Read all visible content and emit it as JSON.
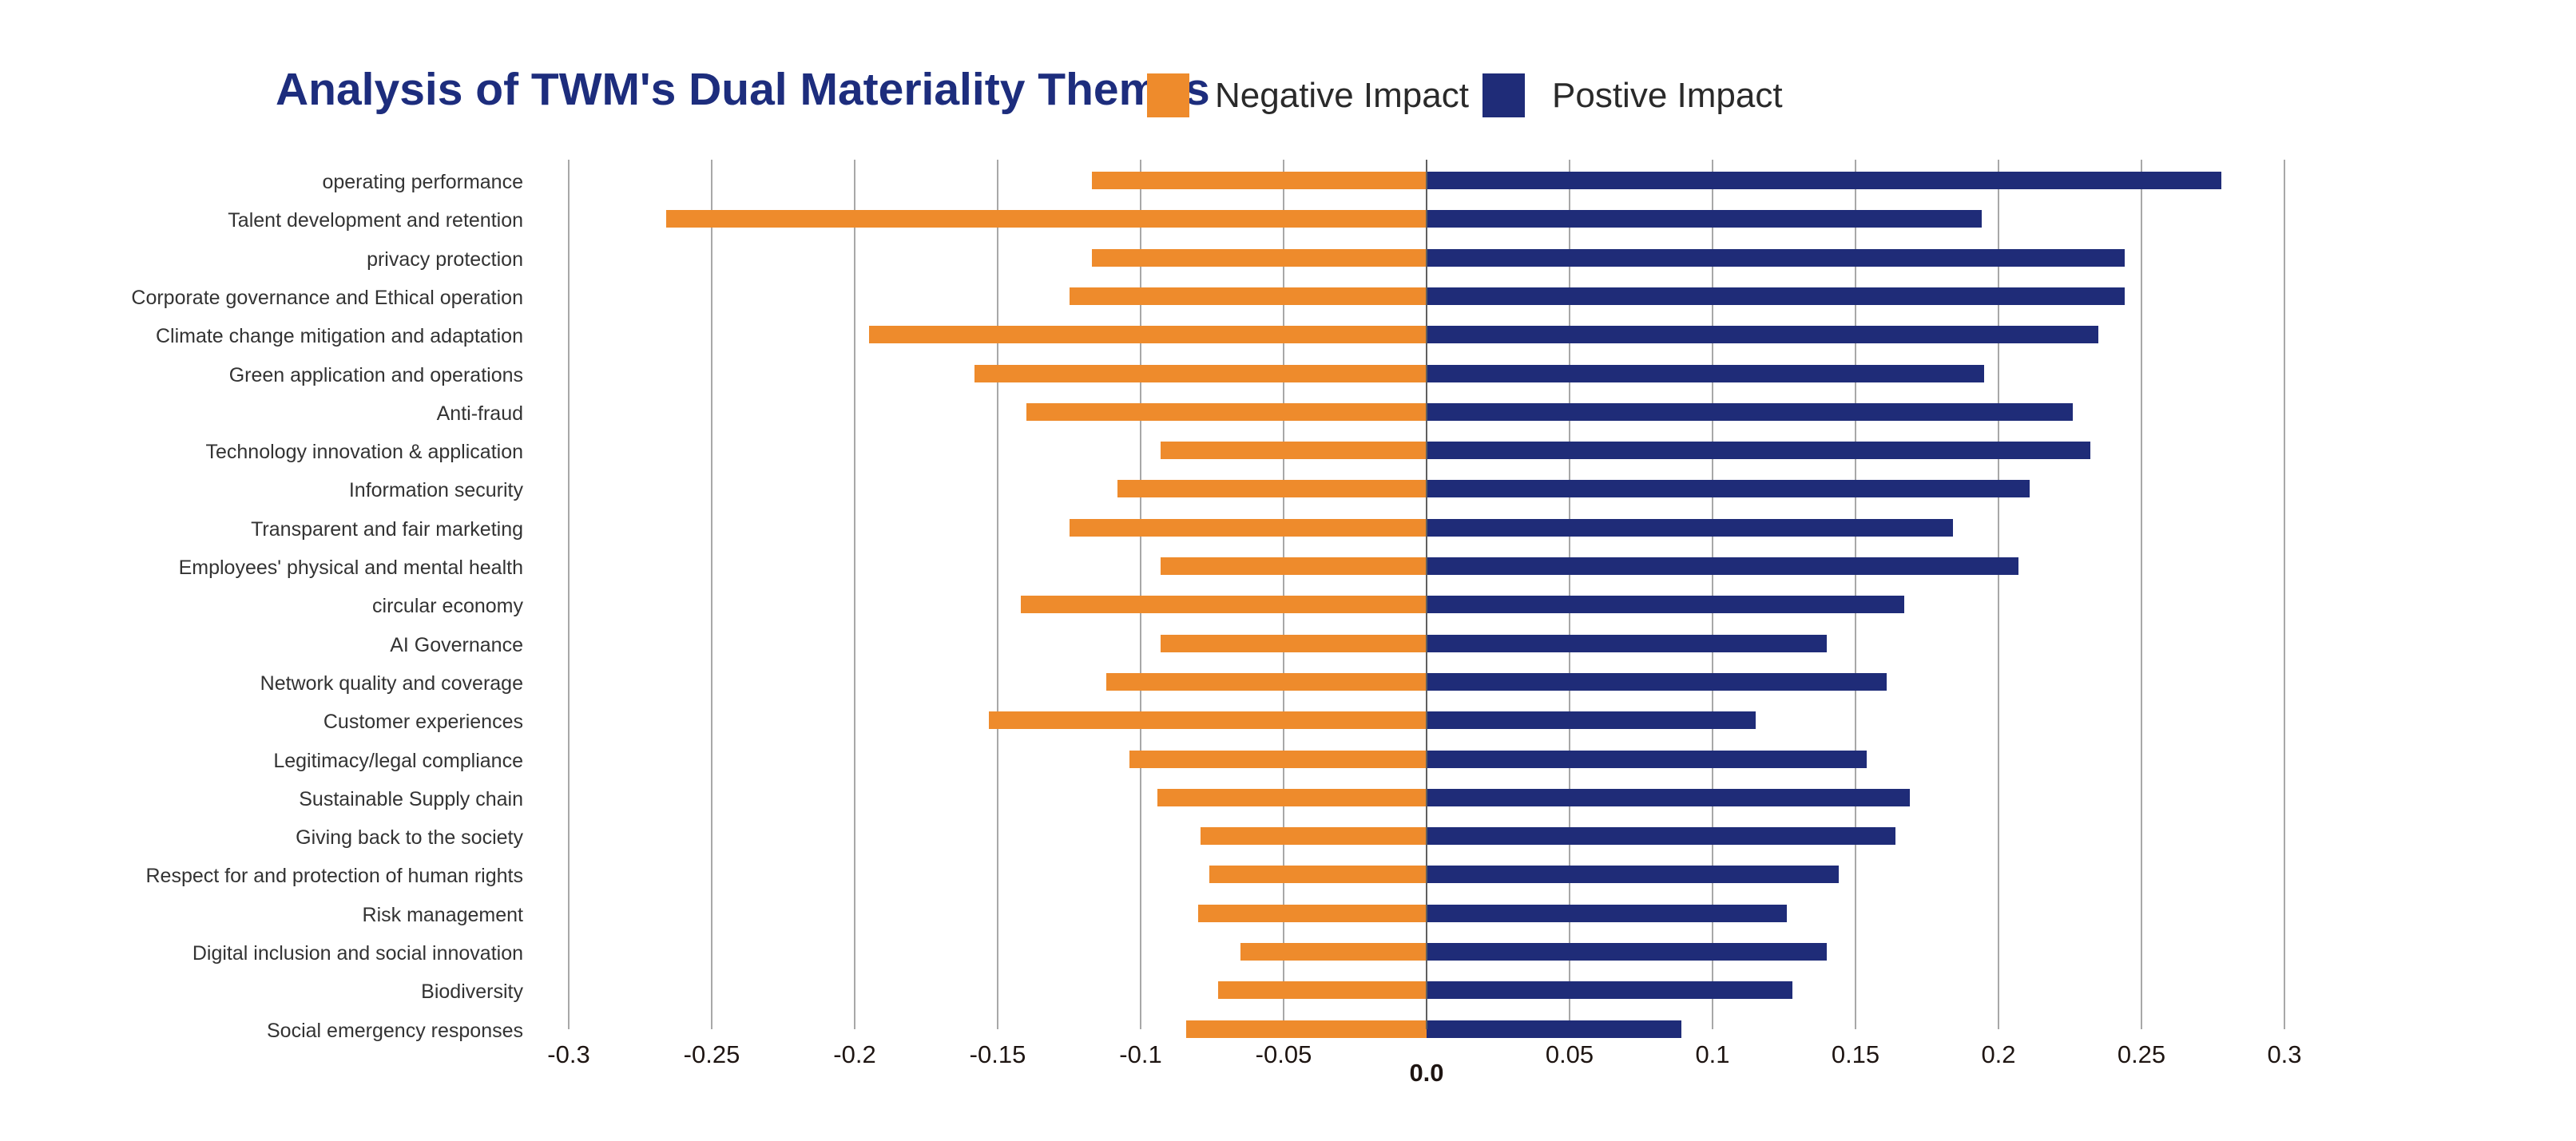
{
  "header": {
    "title": "Analysis of TWM's Dual Materiality Themes"
  },
  "legend": [
    {
      "label": "Negative Impact",
      "color": "#ee8b2c"
    },
    {
      "label": "Postive Impact",
      "color": "#1f2c78"
    }
  ],
  "chart_data": {
    "type": "bar",
    "orientation": "horizontal",
    "title": "Analysis of TWM's Dual Materiality Themes",
    "xlabel": "",
    "ylabel": "",
    "xlim": [
      -0.3,
      0.3
    ],
    "grid": true,
    "legend_position": "top",
    "categories": [
      "operating performance",
      "Talent development and retention",
      "privacy protection",
      "Corporate governance and Ethical operation",
      "Climate change mitigation and adaptation",
      "Green application and operations",
      "Anti-fraud",
      "Technology innovation & application",
      "Information security",
      "Transparent and fair marketing",
      "Employees' physical and mental health",
      "circular economy",
      "AI Governance",
      "Network quality and coverage",
      "Customer experiences",
      "Legitimacy/legal compliance",
      "Sustainable Supply chain",
      "Giving back to the society",
      "Respect for and protection of human rights",
      "Risk management",
      "Digital inclusion and social innovation",
      "Biodiversity",
      "Social emergency responses"
    ],
    "series": [
      {
        "name": "Negative Impact",
        "color": "#ee8b2c",
        "values": [
          -0.117,
          -0.266,
          -0.117,
          -0.125,
          -0.195,
          -0.158,
          -0.14,
          -0.093,
          -0.108,
          -0.125,
          -0.093,
          -0.142,
          -0.093,
          -0.112,
          -0.153,
          -0.104,
          -0.094,
          -0.079,
          -0.076,
          -0.08,
          -0.065,
          -0.073,
          -0.084
        ]
      },
      {
        "name": "Postive Impact",
        "color": "#1f2c78",
        "values": [
          0.278,
          0.194,
          0.244,
          0.244,
          0.235,
          0.195,
          0.226,
          0.232,
          0.211,
          0.184,
          0.207,
          0.167,
          0.14,
          0.161,
          0.115,
          0.154,
          0.169,
          0.164,
          0.144,
          0.126,
          0.14,
          0.128,
          0.089
        ]
      }
    ],
    "x_ticks": [
      {
        "label": "-0.3",
        "value": -0.3,
        "bold": false
      },
      {
        "label": "-0.25",
        "value": -0.25,
        "bold": false
      },
      {
        "label": "-0.2",
        "value": -0.2,
        "bold": false
      },
      {
        "label": "-0.15",
        "value": -0.15,
        "bold": false
      },
      {
        "label": "-0.1",
        "value": -0.1,
        "bold": false
      },
      {
        "label": "-0.05",
        "value": -0.05,
        "bold": false
      },
      {
        "label": "0.0",
        "value": 0.0,
        "bold": true
      },
      {
        "label": "0.05",
        "value": 0.05,
        "bold": false
      },
      {
        "label": "0.1",
        "value": 0.1,
        "bold": false
      },
      {
        "label": "0.15",
        "value": 0.15,
        "bold": false
      },
      {
        "label": "0.2",
        "value": 0.2,
        "bold": false
      },
      {
        "label": "0.25",
        "value": 0.25,
        "bold": false
      },
      {
        "label": "0.3",
        "value": 0.3,
        "bold": false
      }
    ]
  }
}
